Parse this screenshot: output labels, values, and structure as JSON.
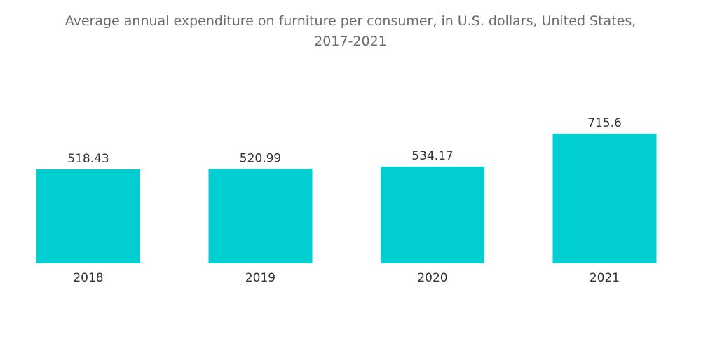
{
  "title_lines": [
    "Average annual expenditure on furniture per consumer, in U.S. dollars, United States,",
    "2017-2021"
  ],
  "colors": {
    "bar": "#00CED1",
    "title": "#6b6b6b",
    "label": "#333333"
  },
  "chart_data": {
    "type": "bar",
    "title": "Average annual expenditure on furniture per consumer, in U.S. dollars, United States, 2017-2021",
    "categories": [
      "2018",
      "2019",
      "2020",
      "2021"
    ],
    "values": [
      518.43,
      520.99,
      534.17,
      715.6
    ],
    "value_labels": [
      "518.43",
      "520.99",
      "534.17",
      "715.6"
    ],
    "xlabel": "",
    "ylabel": "",
    "ylim": [
      0,
      715.6
    ],
    "y_axis_visible": false,
    "grid": false,
    "legend": "none"
  }
}
